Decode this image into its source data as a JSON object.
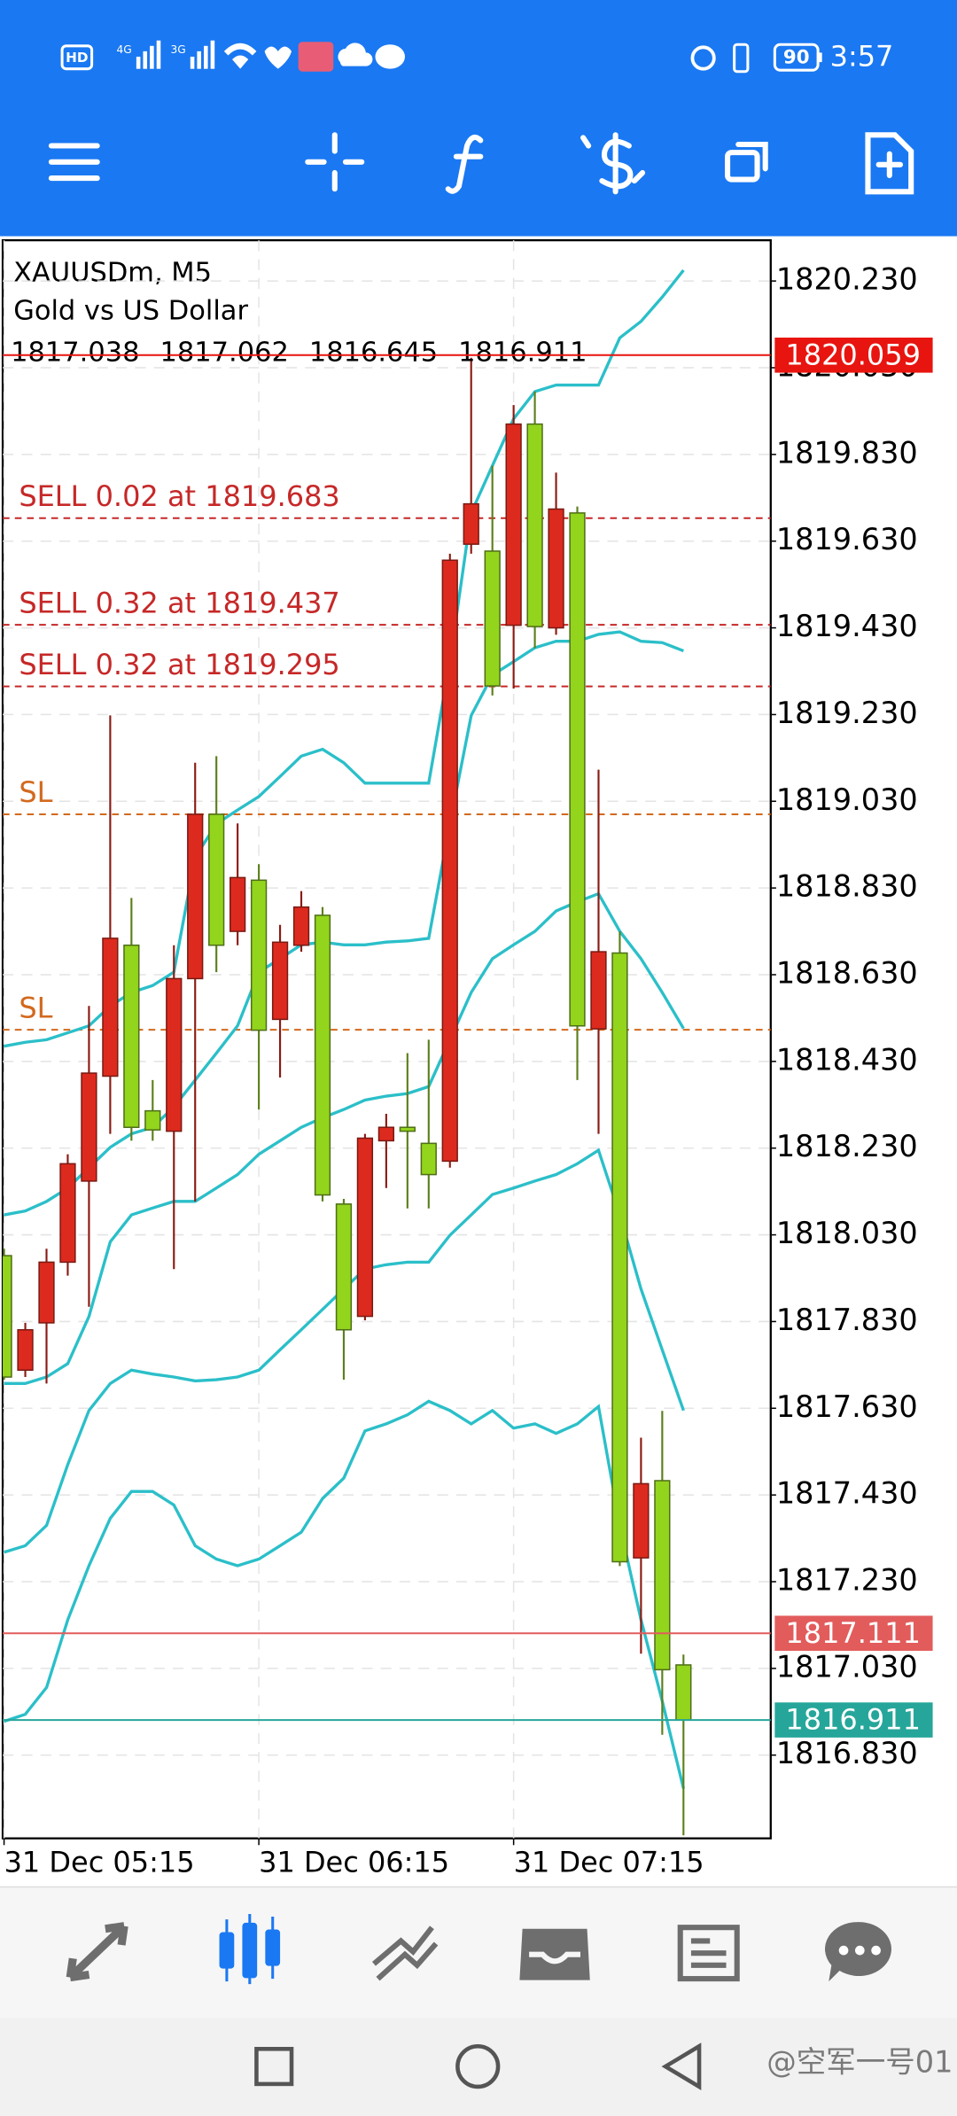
{
  "status_bar": {
    "network": [
      "HD",
      "4G",
      "3G"
    ],
    "battery": "90",
    "time": "3:57"
  },
  "header": {
    "symbol": "XAUUSDm, M5",
    "description": "Gold vs US Dollar"
  },
  "watermark": "@空军一号01",
  "chart_data": {
    "type": "candlestick",
    "categories": [
      "31 Dec 05:15",
      null,
      null,
      null,
      null,
      null,
      null,
      null,
      null,
      null,
      null,
      null,
      "31 Dec 06:15",
      null,
      null,
      null,
      null,
      null,
      null,
      null,
      null,
      null,
      null,
      null,
      "31 Dec 07:15",
      null,
      null,
      null,
      null,
      null,
      null,
      null,
      null
    ],
    "open": [
      1817.982,
      1817.718,
      1817.827,
      1817.967,
      1818.154,
      1818.396,
      1818.698,
      1818.316,
      1818.269,
      1818.621,
      1819.0,
      1818.73,
      1818.848,
      1818.527,
      1818.698,
      1818.767,
      1818.101,
      1817.842,
      1818.247,
      1818.278,
      1818.241,
      1818.2,
      1819.623,
      1819.607,
      1819.436,
      1819.9,
      1819.43,
      1819.695,
      1818.505,
      1818.68,
      1817.285,
      1817.463,
      1817.038
    ],
    "high": [
      1817.998,
      1817.827,
      1817.998,
      1818.216,
      1818.558,
      1819.228,
      1818.807,
      1818.387,
      1818.698,
      1819.119,
      1819.134,
      1818.979,
      1818.885,
      1818.745,
      1818.823,
      1818.786,
      1818.113,
      1818.263,
      1818.309,
      1818.449,
      1818.48,
      1819.601,
      1820.053,
      1819.804,
      1819.944,
      1819.975,
      1819.788,
      1819.71,
      1819.103,
      1818.73,
      1817.562,
      1817.624,
      1817.062
    ],
    "low": [
      1817.696,
      1817.702,
      1817.687,
      1817.936,
      1817.864,
      1818.263,
      1818.247,
      1818.247,
      1817.951,
      1818.107,
      1818.636,
      1818.698,
      1818.319,
      1818.393,
      1818.683,
      1818.107,
      1817.696,
      1817.833,
      1818.138,
      1818.091,
      1818.091,
      1818.185,
      1819.601,
      1819.274,
      1819.29,
      1819.383,
      1819.414,
      1818.387,
      1818.263,
      1817.266,
      1817.064,
      1816.877,
      1816.645
    ],
    "close": [
      1817.702,
      1817.811,
      1817.967,
      1818.194,
      1818.403,
      1818.714,
      1818.278,
      1818.272,
      1818.621,
      1819.0,
      1818.698,
      1818.854,
      1818.502,
      1818.705,
      1818.786,
      1818.122,
      1817.811,
      1818.253,
      1818.278,
      1818.269,
      1818.169,
      1819.586,
      1819.716,
      1819.296,
      1819.9,
      1819.433,
      1819.704,
      1818.512,
      1818.683,
      1817.276,
      1817.456,
      1817.027,
      1816.911
    ],
    "up_color": "#dd2a1e",
    "down_color": "#93d41d",
    "lines": [
      {
        "color": "#2bbfc9",
        "values": [
          1818.465,
          1818.474,
          1818.48,
          1818.496,
          1818.512,
          1818.558,
          1818.589,
          1818.605,
          1818.636,
          1818.901,
          1818.978,
          1819.01,
          1819.041,
          1819.087,
          1819.134,
          1819.15,
          1819.119,
          1819.072,
          1819.072,
          1819.072,
          1819.072,
          1819.352,
          1819.695,
          1819.804,
          1819.912,
          1819.975,
          1819.99,
          1819.99,
          1819.99,
          1820.099,
          1820.137,
          1820.193,
          1820.255
        ]
      },
      {
        "color": "#2bbfc9",
        "values": [
          1818.076,
          1818.085,
          1818.107,
          1818.138,
          1818.185,
          1818.232,
          1818.263,
          1818.278,
          1818.325,
          1818.387,
          1818.449,
          1818.512,
          1818.636,
          1818.667,
          1818.699,
          1818.705,
          1818.699,
          1818.699,
          1818.705,
          1818.708,
          1818.714,
          1818.978,
          1819.228,
          1819.321,
          1819.352,
          1819.384,
          1819.399,
          1819.399,
          1819.415,
          1819.421,
          1819.399,
          1819.396,
          1819.377
        ]
      },
      {
        "color": "#2bbfc9",
        "values": [
          1817.687,
          1817.687,
          1817.702,
          1817.733,
          1817.842,
          1818.014,
          1818.076,
          1818.092,
          1818.107,
          1818.107,
          1818.138,
          1818.169,
          1818.216,
          1818.247,
          1818.278,
          1818.3,
          1818.319,
          1818.341,
          1818.35,
          1818.356,
          1818.372,
          1818.48,
          1818.589,
          1818.667,
          1818.699,
          1818.73,
          1818.777,
          1818.798,
          1818.817,
          1818.73,
          1818.667,
          1818.589,
          1818.506
        ]
      },
      {
        "color": "#2bbfc9",
        "values": [
          1817.298,
          1817.313,
          1817.36,
          1817.5,
          1817.625,
          1817.687,
          1817.718,
          1817.709,
          1817.702,
          1817.693,
          1817.696,
          1817.702,
          1817.718,
          1817.765,
          1817.811,
          1817.858,
          1817.905,
          1817.951,
          1817.961,
          1817.967,
          1817.967,
          1818.029,
          1818.076,
          1818.123,
          1818.138,
          1818.154,
          1818.169,
          1818.194,
          1818.225,
          1818.076,
          1817.905,
          1817.765,
          1817.625
        ]
      },
      {
        "color": "#2bbfc9",
        "values": [
          1816.908,
          1816.924,
          1816.986,
          1817.142,
          1817.267,
          1817.376,
          1817.438,
          1817.438,
          1817.407,
          1817.313,
          1817.282,
          1817.267,
          1817.282,
          1817.313,
          1817.344,
          1817.422,
          1817.469,
          1817.578,
          1817.594,
          1817.615,
          1817.646,
          1817.625,
          1817.594,
          1817.625,
          1817.584,
          1817.594,
          1817.572,
          1817.594,
          1817.634,
          1817.36,
          1817.142,
          1816.955,
          1816.753
        ]
      }
    ],
    "levels": [
      {
        "label": "SELL 0.02 at 1819.683",
        "value": 1819.683,
        "color": "#c62828"
      },
      {
        "label": "SELL 0.32 at 1819.437",
        "value": 1819.437,
        "color": "#c62828"
      },
      {
        "label": "SELL 0.32 at 1819.295",
        "value": 1819.295,
        "color": "#c62828"
      },
      {
        "label": "SL",
        "value": 1819.0,
        "color": "#d2691e"
      },
      {
        "label": "SL",
        "value": 1818.503,
        "color": "#d2691e"
      }
    ],
    "price_lines": [
      {
        "value": 1820.059,
        "color": "#e8140f"
      },
      {
        "value": 1817.111,
        "color": "#e25c5c"
      },
      {
        "value": 1816.911,
        "color": "#26a69a"
      }
    ],
    "ylim": [
      1816.638,
      1820.324
    ],
    "yticks": [
      {
        "value": 1820.23,
        "label": "1820.230"
      },
      {
        "value": 1820.03,
        "label": "1820.030"
      },
      {
        "value": 1819.83,
        "label": "1819.830"
      },
      {
        "value": 1819.63,
        "label": "1819.630"
      },
      {
        "value": 1819.43,
        "label": "1819.430"
      },
      {
        "value": 1819.23,
        "label": "1819.230"
      },
      {
        "value": 1819.03,
        "label": "1819.030"
      },
      {
        "value": 1818.83,
        "label": "1818.830"
      },
      {
        "value": 1818.63,
        "label": "1818.630"
      },
      {
        "value": 1818.43,
        "label": "1818.430"
      },
      {
        "value": 1818.23,
        "label": "1818.230"
      },
      {
        "value": 1818.03,
        "label": "1818.030"
      },
      {
        "value": 1817.83,
        "label": "1817.830"
      },
      {
        "value": 1817.63,
        "label": "1817.630"
      },
      {
        "value": 1817.43,
        "label": "1817.430"
      },
      {
        "value": 1817.23,
        "label": "1817.230"
      },
      {
        "value": 1817.03,
        "label": "1817.030"
      },
      {
        "value": 1816.83,
        "label": "1816.830"
      }
    ],
    "grid": true
  }
}
